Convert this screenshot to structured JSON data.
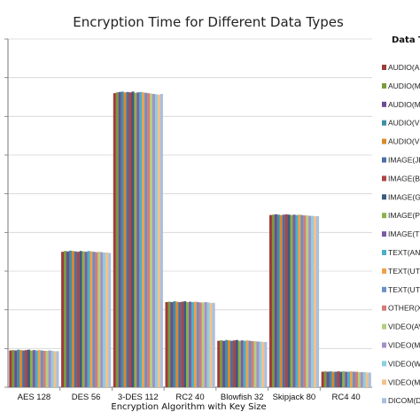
{
  "chart_data": {
    "type": "bar",
    "title": "Encryption Time for Different Data Types",
    "xlabel": "Encryption Algorithm with Key Size",
    "ylabel": "",
    "legend_title": "Data T",
    "legend_position": "right",
    "grid": true,
    "ylim": [
      0,
      9
    ],
    "categories": [
      "AES 128",
      "DES 56",
      "3-DES 112",
      "RC2 40",
      "Blowfish 32",
      "Skipjack 80",
      "RC4 40"
    ],
    "series": [
      {
        "name": "AUDIO(A",
        "color": "#9e3b3b",
        "values": [
          0.95,
          3.5,
          7.6,
          2.2,
          1.2,
          4.45,
          0.4
        ]
      },
      {
        "name": "AUDIO(M",
        "color": "#7a9a3c",
        "values": [
          0.96,
          3.52,
          7.62,
          2.21,
          1.21,
          4.46,
          0.41
        ]
      },
      {
        "name": "AUDIO(M",
        "color": "#6a4c93",
        "values": [
          0.95,
          3.51,
          7.63,
          2.2,
          1.2,
          4.47,
          0.4
        ]
      },
      {
        "name": "AUDIO(V",
        "color": "#3f8ea8",
        "values": [
          0.97,
          3.53,
          7.64,
          2.22,
          1.22,
          4.46,
          0.41
        ]
      },
      {
        "name": "AUDIO(V",
        "color": "#d98a2b",
        "values": [
          0.96,
          3.52,
          7.62,
          2.21,
          1.21,
          4.45,
          0.4
        ]
      },
      {
        "name": "IMAGE(JP",
        "color": "#4a6fa5",
        "values": [
          0.95,
          3.51,
          7.63,
          2.2,
          1.2,
          4.46,
          0.4
        ]
      },
      {
        "name": "IMAGE(B",
        "color": "#b04545",
        "values": [
          0.96,
          3.5,
          7.62,
          2.21,
          1.21,
          4.47,
          0.41
        ]
      },
      {
        "name": "IMAGE(G",
        "color": "#3d5a80",
        "values": [
          0.97,
          3.52,
          7.64,
          2.22,
          1.22,
          4.46,
          0.4
        ]
      },
      {
        "name": "IMAGE(P",
        "color": "#8db04a",
        "values": [
          0.95,
          3.51,
          7.61,
          2.2,
          1.2,
          4.45,
          0.41
        ]
      },
      {
        "name": "IMAGE(T",
        "color": "#7d5ba6",
        "values": [
          0.96,
          3.5,
          7.62,
          2.21,
          1.21,
          4.46,
          0.4
        ]
      },
      {
        "name": "TEXT(AN",
        "color": "#4ab0c8",
        "values": [
          0.95,
          3.52,
          7.63,
          2.2,
          1.2,
          4.45,
          0.4
        ]
      },
      {
        "name": "TEXT(UTF",
        "color": "#f0a04a",
        "values": [
          0.96,
          3.51,
          7.62,
          2.21,
          1.21,
          4.46,
          0.41
        ]
      },
      {
        "name": "TEXT(UTF",
        "color": "#6a8fc8",
        "values": [
          0.95,
          3.5,
          7.61,
          2.2,
          1.2,
          4.45,
          0.4
        ]
      },
      {
        "name": "OTHER(X",
        "color": "#d67b7b",
        "values": [
          0.94,
          3.49,
          7.6,
          2.19,
          1.19,
          4.44,
          0.4
        ]
      },
      {
        "name": "VIDEO(AV",
        "color": "#b4cf7e",
        "values": [
          0.94,
          3.5,
          7.59,
          2.19,
          1.19,
          4.44,
          0.39
        ]
      },
      {
        "name": "VIDEO(M",
        "color": "#a690c8",
        "values": [
          0.95,
          3.49,
          7.58,
          2.2,
          1.18,
          4.43,
          0.39
        ]
      },
      {
        "name": "VIDEO(W",
        "color": "#8ccfe0",
        "values": [
          0.94,
          3.48,
          7.57,
          2.19,
          1.18,
          4.43,
          0.39
        ]
      },
      {
        "name": "VIDEO(M",
        "color": "#f5c08a",
        "values": [
          0.93,
          3.48,
          7.56,
          2.18,
          1.17,
          4.42,
          0.38
        ]
      },
      {
        "name": "DICOM(D",
        "color": "#a9bfe0",
        "values": [
          0.93,
          3.47,
          7.58,
          2.18,
          1.17,
          4.42,
          0.38
        ]
      }
    ]
  }
}
